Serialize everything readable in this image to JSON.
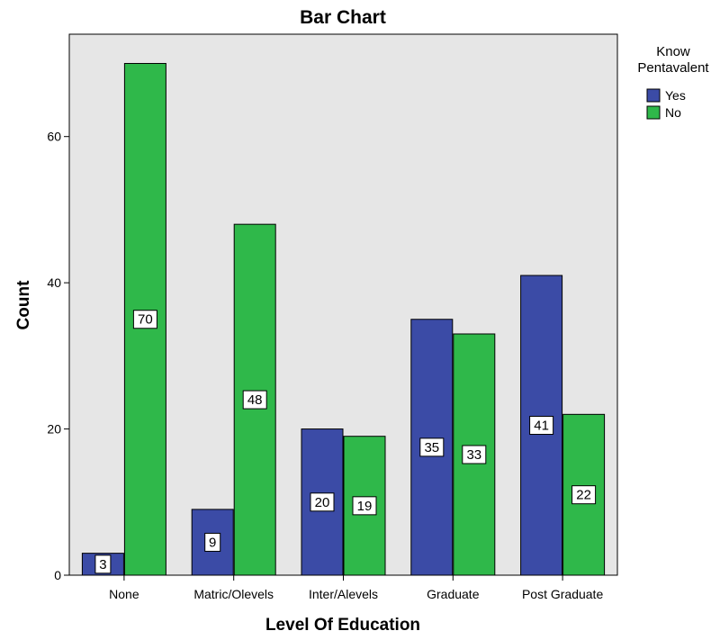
{
  "chart_data": {
    "type": "bar",
    "title": "Bar Chart",
    "xlabel": "Level Of Education",
    "ylabel": "Count",
    "categories": [
      "None",
      "Matric/Olevels",
      "Inter/Alevels",
      "Graduate",
      "Post Graduate"
    ],
    "series": [
      {
        "name": "Yes",
        "values": [
          3,
          9,
          20,
          35,
          41
        ],
        "color": "#3b4ba6"
      },
      {
        "name": "No",
        "values": [
          70,
          48,
          19,
          33,
          22
        ],
        "color": "#2fb84a"
      }
    ],
    "legend_title": "Know Pentavalent",
    "legend_position": "top-right",
    "ylim": [
      0,
      74
    ],
    "yticks": [
      0,
      20,
      40,
      60
    ],
    "grid": false,
    "plot_background": "#e6e6e6"
  }
}
